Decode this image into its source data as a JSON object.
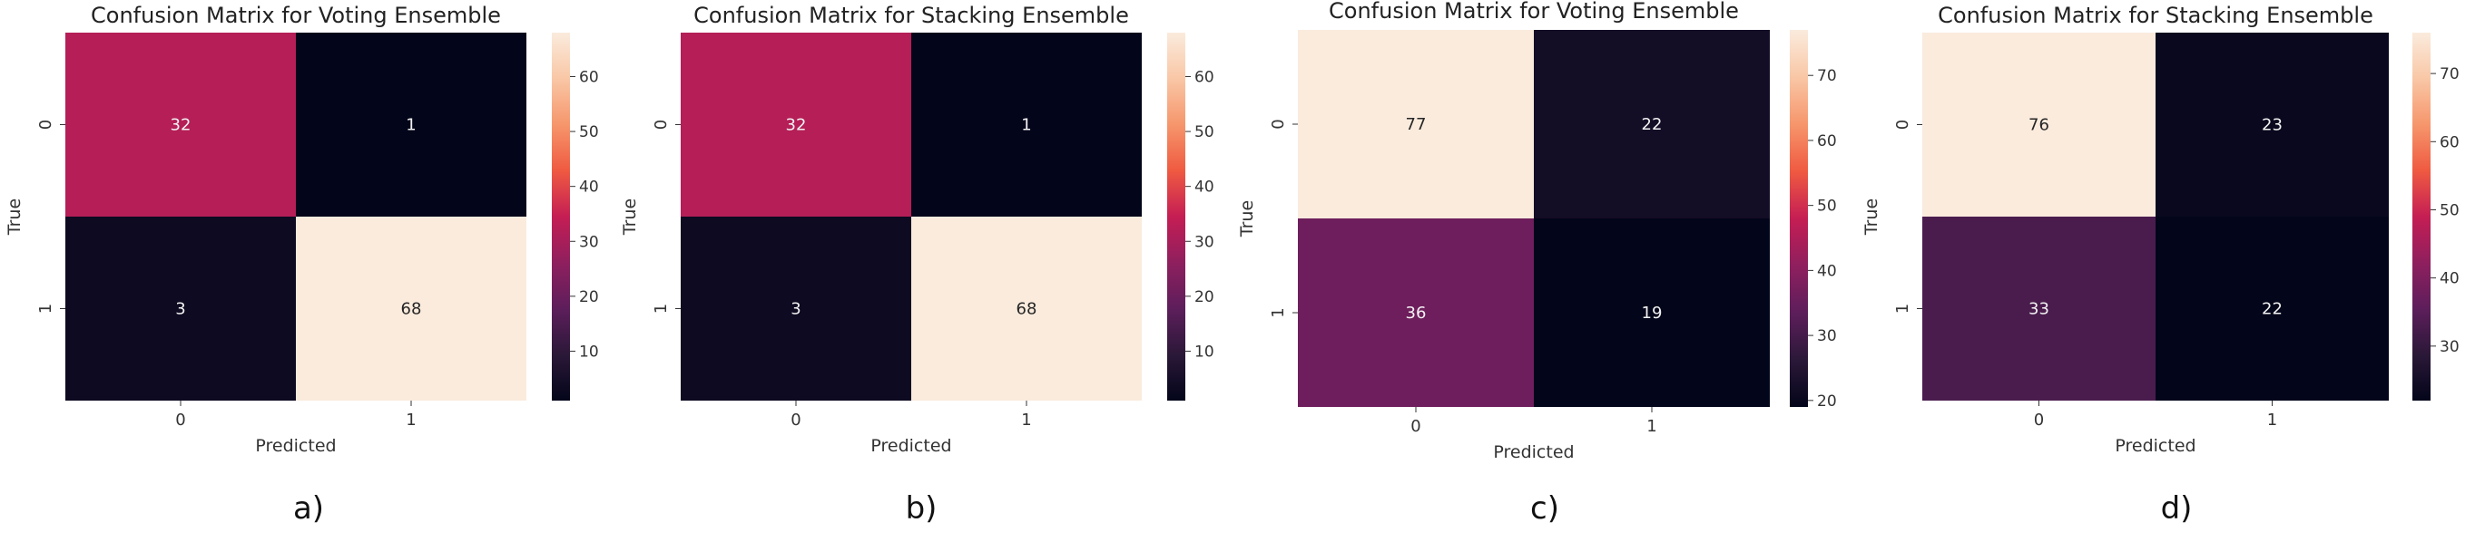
{
  "chart_data": [
    {
      "type": "heatmap",
      "title": "Confusion Matrix for Voting Ensemble",
      "xlabel": "Predicted",
      "ylabel": "True",
      "x_categories": [
        "0",
        "1"
      ],
      "y_categories": [
        "0",
        "1"
      ],
      "values": [
        [
          32,
          1
        ],
        [
          3,
          68
        ]
      ],
      "colorbar": {
        "min": 1,
        "max": 68,
        "ticks": [
          10,
          20,
          30,
          40,
          50,
          60
        ]
      },
      "caption": "a)"
    },
    {
      "type": "heatmap",
      "title": "Confusion Matrix for Stacking Ensemble",
      "xlabel": "Predicted",
      "ylabel": "True",
      "x_categories": [
        "0",
        "1"
      ],
      "y_categories": [
        "0",
        "1"
      ],
      "values": [
        [
          32,
          1
        ],
        [
          3,
          68
        ]
      ],
      "colorbar": {
        "min": 1,
        "max": 68,
        "ticks": [
          10,
          20,
          30,
          40,
          50,
          60
        ]
      },
      "caption": "b)"
    },
    {
      "type": "heatmap",
      "title": "Confusion Matrix for Voting Ensemble",
      "xlabel": "Predicted",
      "ylabel": "True",
      "x_categories": [
        "0",
        "1"
      ],
      "y_categories": [
        "0",
        "1"
      ],
      "values": [
        [
          77,
          22
        ],
        [
          36,
          19
        ]
      ],
      "colorbar": {
        "min": 19,
        "max": 77,
        "ticks": [
          20,
          30,
          40,
          50,
          60,
          70
        ]
      },
      "caption": "c)"
    },
    {
      "type": "heatmap",
      "title": "Confusion Matrix for Stacking Ensemble",
      "xlabel": "Predicted",
      "ylabel": "True",
      "x_categories": [
        "0",
        "1"
      ],
      "y_categories": [
        "0",
        "1"
      ],
      "values": [
        [
          76,
          23
        ],
        [
          33,
          22
        ]
      ],
      "colorbar": {
        "min": 22,
        "max": 76,
        "ticks": [
          30,
          40,
          50,
          60,
          70
        ]
      },
      "caption": "d)"
    }
  ],
  "colors": {
    "colormap": "rocket",
    "stops": [
      "#03051a",
      "#2b1838",
      "#5d1e5b",
      "#8f1f5e",
      "#c51e54",
      "#ef5a41",
      "#f6966c",
      "#f9c7a6",
      "#faebdd"
    ]
  }
}
